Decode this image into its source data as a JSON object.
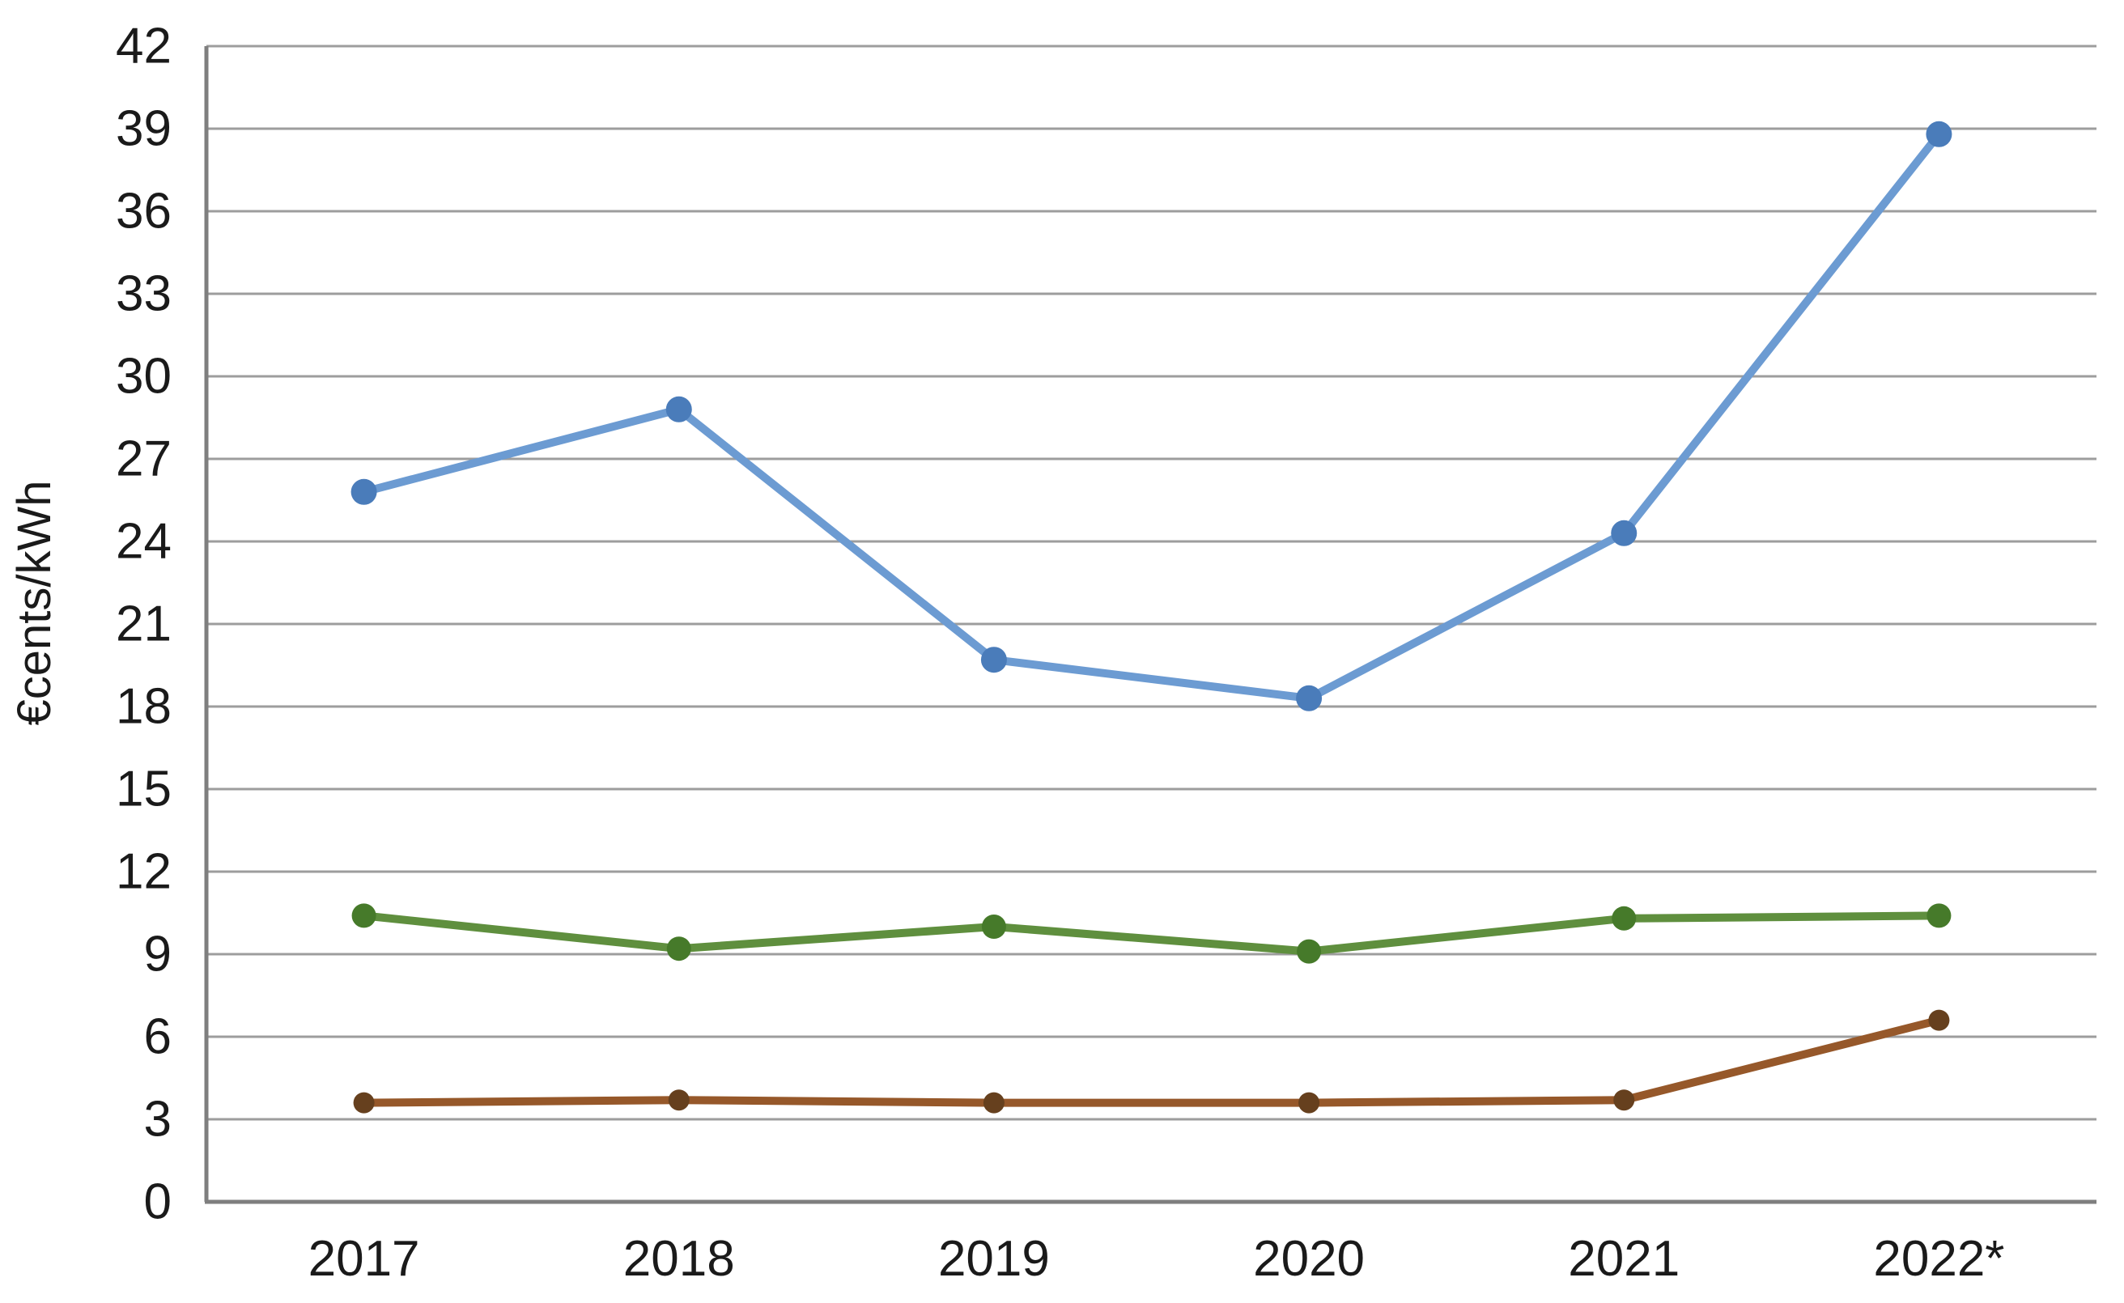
{
  "page": {
    "background_color": "#ffffff"
  },
  "chart_data": {
    "type": "line",
    "title": "",
    "xlabel": "",
    "ylabel": "€cents/kWh",
    "categories": [
      "2017",
      "2018",
      "2019",
      "2020",
      "2021",
      "2022*"
    ],
    "series": [
      {
        "name": "series-blue",
        "line_color": "#6c9bd2",
        "marker_color": "#4a7cba",
        "values": [
          25.8,
          28.8,
          19.7,
          18.3,
          24.3,
          38.8
        ]
      },
      {
        "name": "series-green",
        "line_color": "#5f8f3e",
        "marker_color": "#467a2a",
        "values": [
          10.4,
          9.2,
          10.0,
          9.1,
          10.3,
          10.4
        ]
      },
      {
        "name": "series-brown",
        "line_color": "#96582a",
        "marker_color": "#66401e",
        "values": [
          3.6,
          3.7,
          3.6,
          3.6,
          3.7,
          6.6
        ]
      }
    ],
    "y_axis": {
      "min": 0,
      "max": 42,
      "tick_step": 3,
      "tick_labels": [
        "0",
        "3",
        "6",
        "9",
        "12",
        "15",
        "18",
        "21",
        "24",
        "27",
        "30",
        "33",
        "36",
        "39",
        "42"
      ]
    },
    "grid": true,
    "gridline_color": "#9d9d9d",
    "axis_color": "#7f7f7f",
    "legend_position": "none",
    "marker_shape": "circle"
  }
}
